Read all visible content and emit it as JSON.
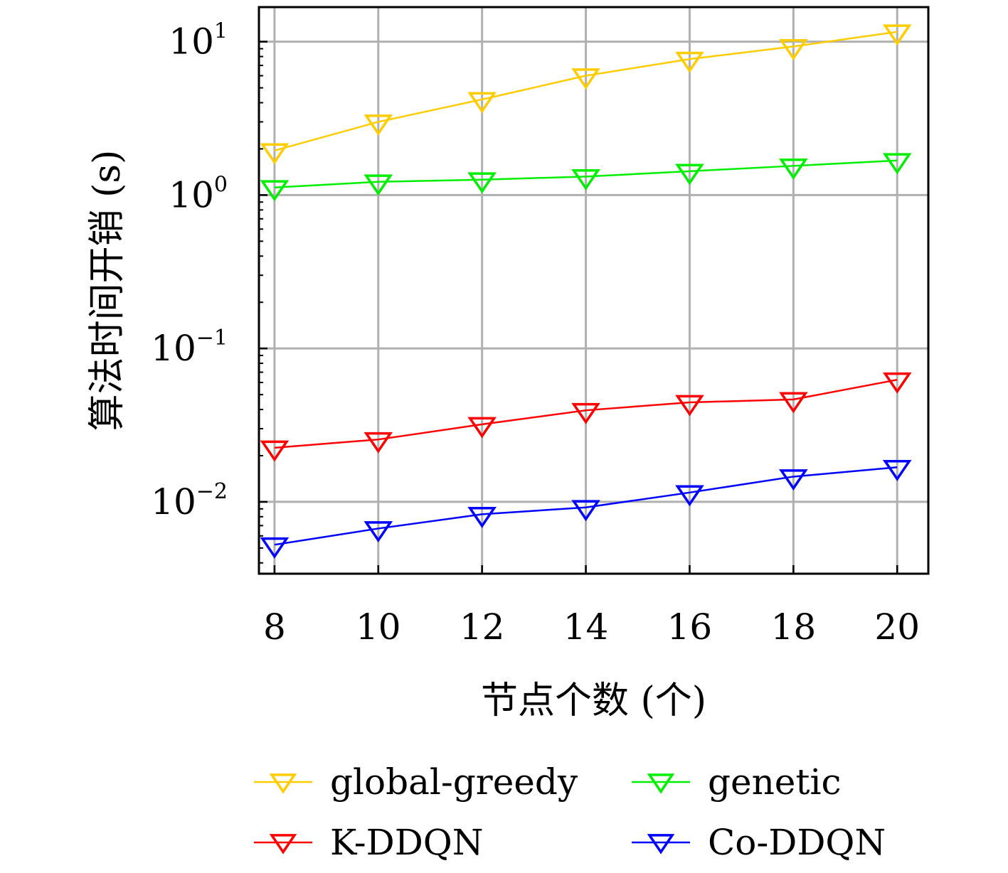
{
  "chart_data": {
    "type": "line",
    "title": "",
    "xlabel": "节点个数 (个)",
    "ylabel": "算法时间开销 (s)",
    "x": [
      8,
      10,
      12,
      14,
      16,
      18,
      20
    ],
    "xticks": [
      "8",
      "10",
      "12",
      "14",
      "16",
      "18",
      "20"
    ],
    "xlim": [
      7.7,
      20.6
    ],
    "ylim": [
      0.0034,
      16.8
    ],
    "yscale": "log",
    "yticks": [
      {
        "value": 10,
        "base": "10",
        "exp": "1"
      },
      {
        "value": 1,
        "base": "10",
        "exp": "0"
      },
      {
        "value": 0.1,
        "base": "10",
        "exp": "−1"
      },
      {
        "value": 0.01,
        "base": "10",
        "exp": "−2"
      }
    ],
    "grid": true,
    "legend_position": "bottom",
    "marker": "triangle-down-open",
    "series": [
      {
        "name": "global-greedy",
        "color": "#FFCC00",
        "values": [
          1.95,
          3.0,
          4.2,
          6.0,
          7.7,
          9.3,
          11.6
        ]
      },
      {
        "name": "genetic",
        "color": "#00EE00",
        "values": [
          1.12,
          1.22,
          1.26,
          1.32,
          1.43,
          1.55,
          1.68
        ]
      },
      {
        "name": "K-DDQN",
        "color": "#FF0000",
        "values": [
          0.0225,
          0.0255,
          0.032,
          0.0395,
          0.0445,
          0.0465,
          0.0625
        ]
      },
      {
        "name": "Co-DDQN",
        "color": "#0000FF",
        "values": [
          0.00525,
          0.0067,
          0.0083,
          0.0092,
          0.0115,
          0.0146,
          0.0168
        ]
      }
    ]
  }
}
